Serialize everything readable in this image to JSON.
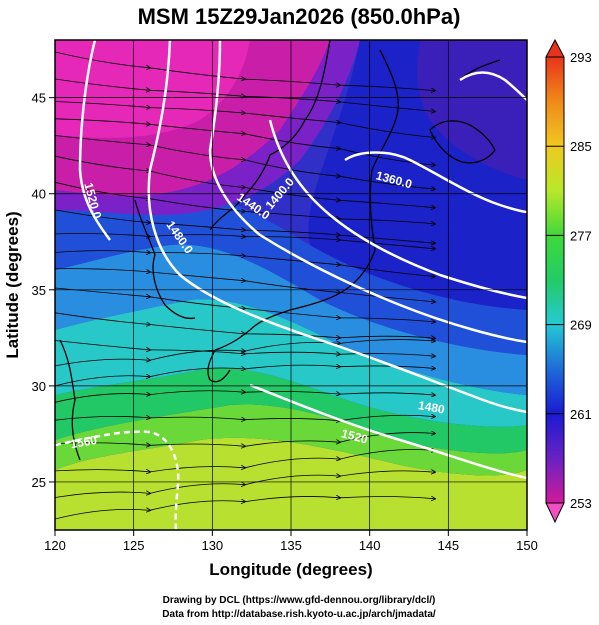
{
  "title": "MSM 15Z29Jan2026 (850.0hPa)",
  "chart_data": {
    "type": "heatmap",
    "title": "MSM 15Z29Jan2026 (850.0hPa)",
    "xlabel": "Longitude (degrees)",
    "ylabel": "Latitude  (degrees)",
    "xlim": [
      120,
      150
    ],
    "ylim": [
      22.5,
      48
    ],
    "x_ticks": [
      "120",
      "125",
      "130",
      "135",
      "140",
      "145",
      "150"
    ],
    "y_ticks": [
      "25",
      "30",
      "35",
      "40",
      "45"
    ],
    "grid": true,
    "colorbar": {
      "min": 253,
      "max": 293,
      "tick_labels": [
        "293",
        "285",
        "277",
        "269",
        "261",
        "253"
      ],
      "tick_values": [
        293,
        285,
        277,
        269,
        261,
        253
      ],
      "colors": [
        "#d11a9a",
        "#6a22c4",
        "#1a1ad2",
        "#1d6bd8",
        "#25c9d4",
        "#22cc66",
        "#40d83a",
        "#b8e82a",
        "#f0c820",
        "#f08a1a",
        "#e8341c"
      ]
    },
    "contour_labels": [
      "1520.0",
      "1480.0",
      "1440.0",
      "1400.0",
      "1360.0",
      "1480",
      "1520",
      "1560"
    ]
  },
  "credits": [
    "Drawing by DCL (https://www.gfd-dennou.org/library/dcl/)",
    "Data from http://database.rish.kyoto-u.ac.jp/arch/jmadata/"
  ]
}
